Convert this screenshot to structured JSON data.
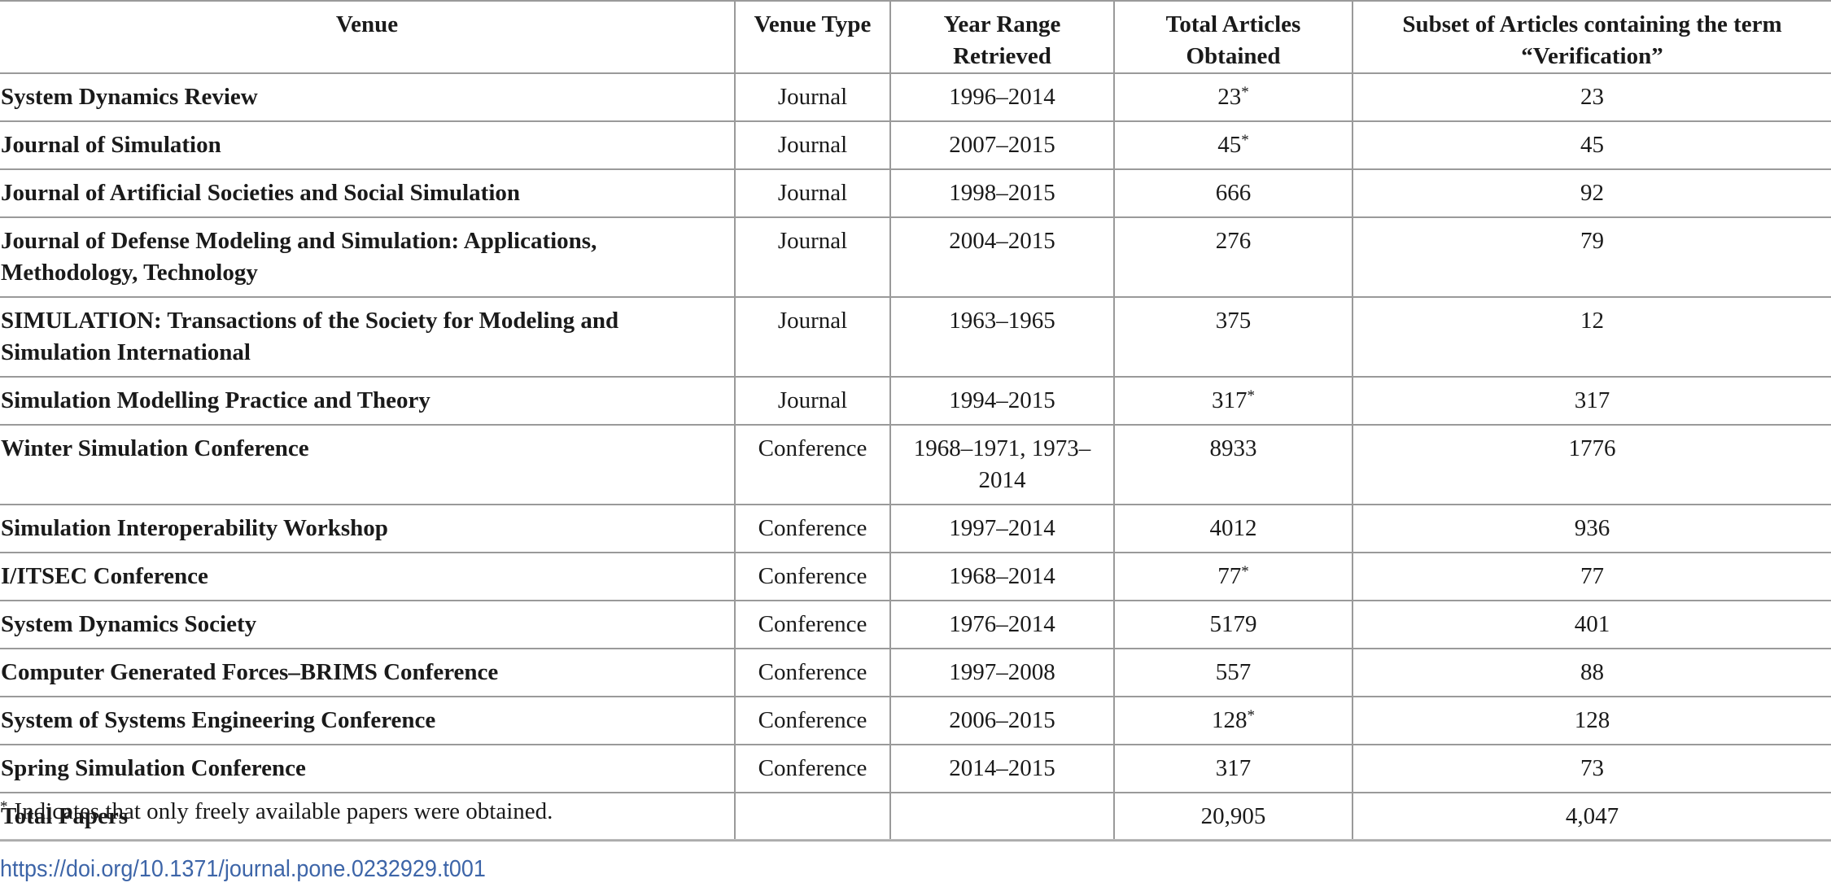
{
  "table": {
    "headers": [
      "Venue",
      "Venue Type",
      "Year Range Retrieved",
      "Total Articles Obtained",
      "Subset of Articles containing the term “Verification”"
    ],
    "rows": [
      {
        "venue": "System Dynamics Review",
        "type": "Journal",
        "years": "1996–2014",
        "total": "23",
        "total_star": "*",
        "subset": "23"
      },
      {
        "venue": "Journal of Simulation",
        "type": "Journal",
        "years": "2007–2015",
        "total": "45",
        "total_star": "*",
        "subset": "45"
      },
      {
        "venue": "Journal of Artificial Societies and Social Simulation",
        "type": "Journal",
        "years": "1998–2015",
        "total": "666",
        "total_star": "",
        "subset": "92"
      },
      {
        "venue": "Journal of Defense Modeling and Simulation: Applications, Methodology, Technology",
        "type": "Journal",
        "years": "2004–2015",
        "total": "276",
        "total_star": "",
        "subset": "79"
      },
      {
        "venue": "SIMULATION: Transactions of the Society for Modeling and Simulation International",
        "type": "Journal",
        "years": "1963–1965",
        "total": "375",
        "total_star": "",
        "subset": "12"
      },
      {
        "venue": "Simulation Modelling Practice and Theory",
        "type": "Journal",
        "years": "1994–2015",
        "total": "317",
        "total_star": "*",
        "subset": "317"
      },
      {
        "venue": "Winter Simulation Conference",
        "type": "Conference",
        "years": "1968–1971, 1973–2014",
        "total": "8933",
        "total_star": "",
        "subset": "1776"
      },
      {
        "venue": "Simulation Interoperability Workshop",
        "type": "Conference",
        "years": "1997–2014",
        "total": "4012",
        "total_star": "",
        "subset": "936"
      },
      {
        "venue": "I/ITSEC Conference",
        "type": "Conference",
        "years": "1968–2014",
        "total": "77",
        "total_star": "*",
        "subset": "77"
      },
      {
        "venue": "System Dynamics Society",
        "type": "Conference",
        "years": "1976–2014",
        "total": "5179",
        "total_star": "",
        "subset": "401"
      },
      {
        "venue": "Computer Generated Forces–BRIMS Conference",
        "type": "Conference",
        "years": "1997–2008",
        "total": "557",
        "total_star": "",
        "subset": "88"
      },
      {
        "venue": "System of Systems Engineering Conference",
        "type": "Conference",
        "years": "2006–2015",
        "total": "128",
        "total_star": "*",
        "subset": "128"
      },
      {
        "venue": "Spring Simulation Conference",
        "type": "Conference",
        "years": "2014–2015",
        "total": "317",
        "total_star": "",
        "subset": "73"
      },
      {
        "venue": "Total Papers",
        "type": "",
        "years": "",
        "total": "20,905",
        "total_star": "",
        "subset": "4,047"
      }
    ]
  },
  "footnote": {
    "marker": "*",
    "text": "Indicates that only freely available papers were obtained."
  },
  "doi": {
    "text": "https://doi.org/10.1371/journal.pone.0232929.t001"
  }
}
